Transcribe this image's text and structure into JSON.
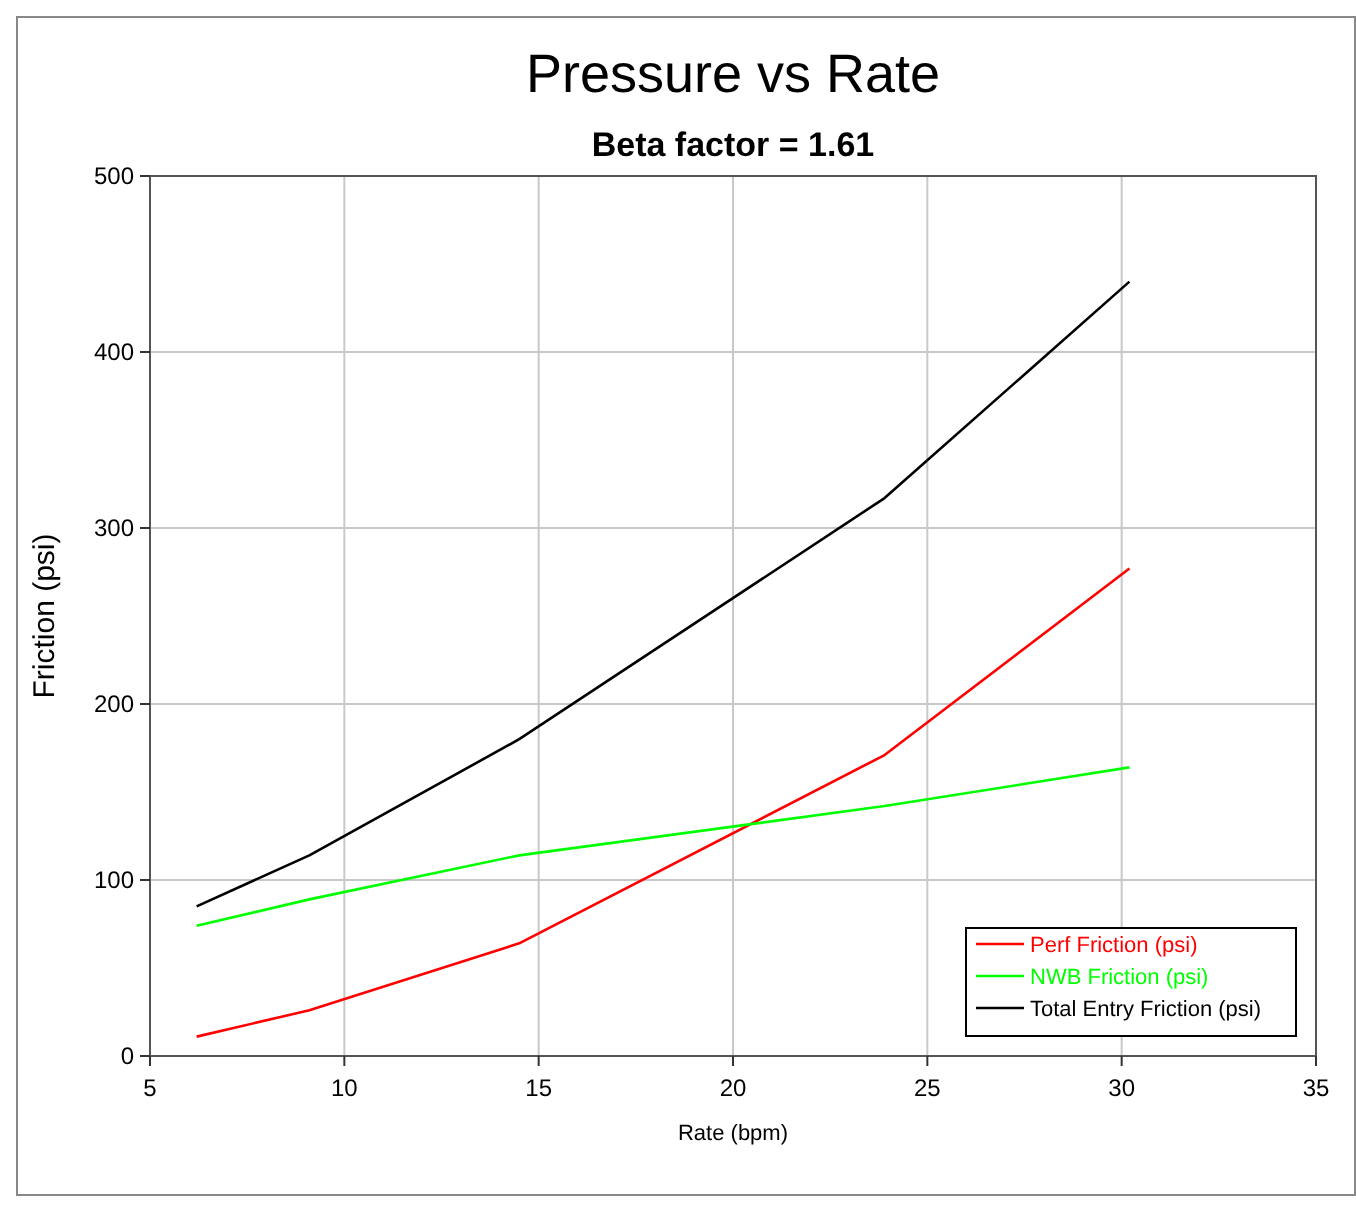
{
  "chart_data": {
    "type": "line",
    "title": "Pressure vs Rate",
    "subtitle": "Beta factor = 1.61",
    "xlabel": "Rate (bpm)",
    "ylabel": "Friction (psi)",
    "x": [
      6.2,
      9.1,
      14.5,
      23.9,
      30.2
    ],
    "series": [
      {
        "name": "Perf Friction (psi)",
        "color": "#ff0000",
        "values": [
          11,
          26,
          64,
          171,
          277
        ]
      },
      {
        "name": "NWB Friction (psi)",
        "color": "#00ff00",
        "values": [
          74,
          89,
          114,
          142,
          164
        ]
      },
      {
        "name": "Total Entry Friction (psi)",
        "color": "#000000",
        "values": [
          85,
          114,
          180,
          317,
          440
        ]
      }
    ],
    "xlim": [
      5,
      35
    ],
    "xticks": [
      5,
      10,
      15,
      20,
      25,
      30,
      35
    ],
    "ylim": [
      0,
      500
    ],
    "yticks": [
      0,
      100,
      200,
      300,
      400,
      500
    ],
    "grid": true,
    "legend": "bottom right",
    "marker": "none",
    "line_style": "solid"
  }
}
